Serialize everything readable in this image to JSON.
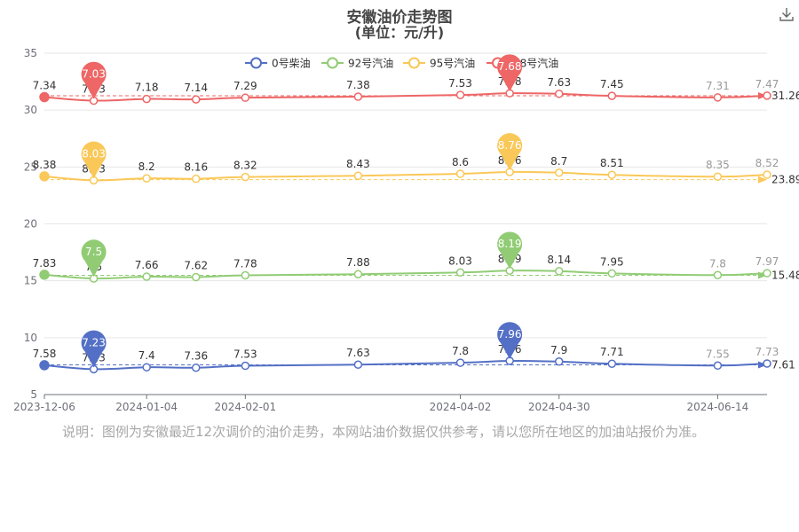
{
  "title": "安徽油价走势图",
  "subtitle": "(单位：元/升)",
  "note": "说明：图例为安徽最近12次调价的油价走势，本网站油价数据仅供参考，请以您所在地区的加油站报价为准。",
  "download_icon": "download-icon",
  "chart_data": {
    "type": "line",
    "title": "安徽油价走势图",
    "subtitle": "(单位：元/升)",
    "x": [
      "2023-12-06",
      "2023-12-20",
      "2024-01-04",
      "2024-01-18",
      "2024-02-01",
      "2024-03-04",
      "2024-04-02",
      "2024-04-16",
      "2024-04-30",
      "2024-05-15",
      "2024-06-14",
      "2024-06-28"
    ],
    "x_tick_labels": [
      "2023-12-06",
      "2024-01-04",
      "2024-02-01",
      "2024-04-02",
      "2024-04-30",
      "2024-06-14"
    ],
    "y_ticks": [
      5,
      10,
      15,
      20,
      25,
      30,
      35
    ],
    "ylim": [
      5,
      35
    ],
    "grid": true,
    "legend_position": "top",
    "series": [
      {
        "name": "0号柴油",
        "color": "#5470c6",
        "offset": 0,
        "labels": [
          "7.58",
          "7.23",
          "7.4",
          "7.36",
          "7.53",
          "7.63",
          "7.8",
          "7.96",
          "7.9",
          "7.71",
          "7.55",
          "7.73"
        ],
        "max_pin": "7.96",
        "min_pin": "7.23",
        "avg_label": "7.61"
      },
      {
        "name": "92号汽油",
        "color": "#91cc75",
        "offset": 7.7,
        "labels": [
          "7.83",
          "7.5",
          "7.66",
          "7.62",
          "7.78",
          "7.88",
          "8.03",
          "8.19",
          "8.14",
          "7.95",
          "7.8",
          "7.97"
        ],
        "max_pin": "8.19",
        "min_pin": "7.5",
        "avg_label": "15.48"
      },
      {
        "name": "95号汽油",
        "color": "#fac858",
        "offset": 15.8,
        "labels": [
          "8.38",
          "8.03",
          "8.2",
          "8.16",
          "8.32",
          "8.43",
          "8.6",
          "8.76",
          "8.7",
          "8.51",
          "8.35",
          "8.52"
        ],
        "max_pin": "8.76",
        "min_pin": "8.03",
        "avg_label": "23.89"
      },
      {
        "name": "98号汽油",
        "color": "#ee6666",
        "offset": 23.8,
        "labels": [
          "7.34",
          "7.03",
          "7.18",
          "7.14",
          "7.29",
          "7.38",
          "7.53",
          "7.68",
          "7.63",
          "7.45",
          "7.31",
          "7.47"
        ],
        "max_pin": "7.68",
        "min_pin": "7.03",
        "avg_label": "31.26"
      }
    ]
  }
}
